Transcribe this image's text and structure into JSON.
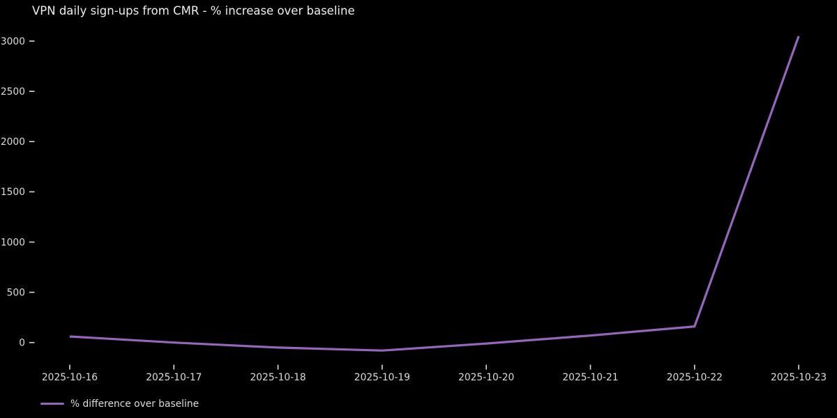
{
  "colors": {
    "background": "#000000",
    "text": "#dcdcdc",
    "title_text": "#eeeeee",
    "line": "#9467bd"
  },
  "legend": {
    "label": "% difference over baseline"
  },
  "chart_data": {
    "type": "line",
    "title": "VPN daily sign-ups from CMR - % increase over baseline",
    "x": [
      "2025-10-16",
      "2025-10-17",
      "2025-10-18",
      "2025-10-19",
      "2025-10-20",
      "2025-10-21",
      "2025-10-22",
      "2025-10-23"
    ],
    "series": [
      {
        "name": "% difference over baseline",
        "values": [
          60,
          0,
          -50,
          -80,
          -10,
          70,
          160,
          3050
        ],
        "color": "#9467bd"
      }
    ],
    "xlabel": "",
    "ylabel": "",
    "y_ticks": [
      0,
      500,
      1000,
      1500,
      2000,
      2500,
      3000
    ],
    "ylim": [
      -150,
      3150
    ],
    "grid": false,
    "axis_spines": false,
    "legend_position": "lower-left",
    "background": "black"
  }
}
